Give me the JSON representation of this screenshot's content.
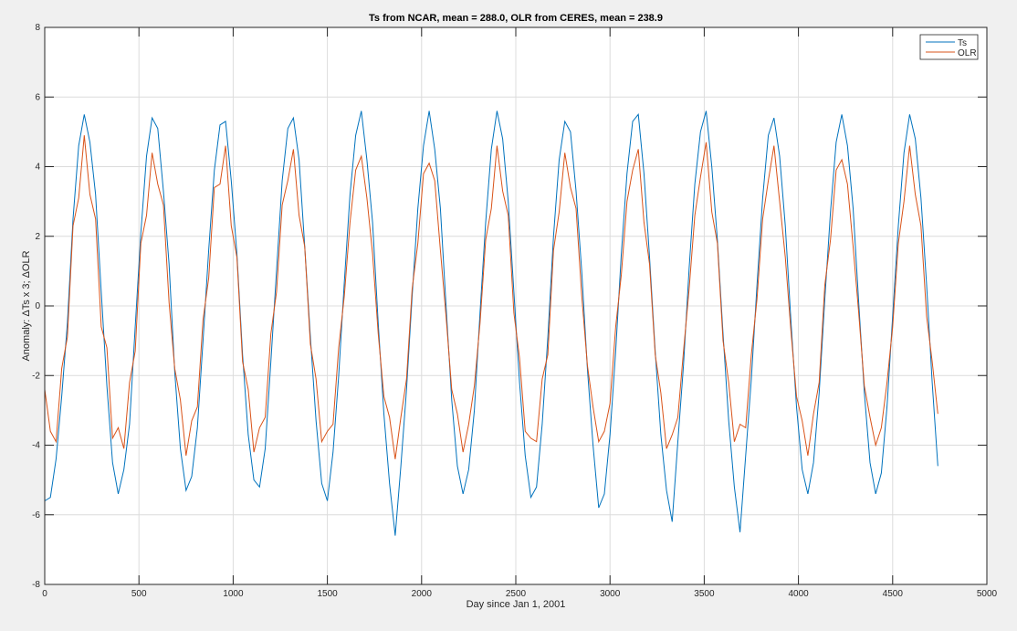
{
  "chart_data": {
    "type": "line",
    "title": "Ts from NCAR, mean = 288.0, OLR from CERES, mean = 238.9",
    "xlabel": "Day since Jan 1, 2001",
    "ylabel": "Anomaly: ΔTs x 3; ΔOLR",
    "xlim": [
      0,
      5000
    ],
    "ylim": [
      -8,
      8
    ],
    "xticks": [
      "0",
      "500",
      "1000",
      "1500",
      "2000",
      "2500",
      "3000",
      "3500",
      "4000",
      "4500",
      "5000"
    ],
    "yticks": [
      "-8",
      "-6",
      "-4",
      "-2",
      "0",
      "2",
      "4",
      "6",
      "8"
    ],
    "grid": true,
    "legend": "top-right",
    "x": [
      0,
      30,
      60,
      90,
      120,
      150,
      180,
      210,
      240,
      270,
      300,
      330,
      360,
      390,
      420,
      450,
      480,
      510,
      540,
      570,
      600,
      630,
      660,
      690,
      720,
      750,
      780,
      810,
      840,
      870,
      900,
      930,
      960,
      990,
      1020,
      1050,
      1080,
      1110,
      1140,
      1170,
      1200,
      1230,
      1260,
      1290,
      1320,
      1350,
      1380,
      1410,
      1440,
      1470,
      1500,
      1530,
      1560,
      1590,
      1620,
      1650,
      1680,
      1710,
      1740,
      1770,
      1800,
      1830,
      1860,
      1890,
      1920,
      1950,
      1980,
      2010,
      2040,
      2070,
      2100,
      2130,
      2160,
      2190,
      2220,
      2250,
      2280,
      2310,
      2340,
      2370,
      2400,
      2430,
      2460,
      2490,
      2520,
      2550,
      2580,
      2610,
      2640,
      2670,
      2700,
      2730,
      2760,
      2790,
      2820,
      2850,
      2880,
      2910,
      2940,
      2970,
      3000,
      3030,
      3060,
      3090,
      3120,
      3150,
      3180,
      3210,
      3240,
      3270,
      3300,
      3330,
      3360,
      3390,
      3420,
      3450,
      3480,
      3510,
      3540,
      3570,
      3600,
      3630,
      3660,
      3690,
      3720,
      3750,
      3780,
      3810,
      3840,
      3870,
      3900,
      3930,
      3960,
      3990,
      4020,
      4050,
      4080,
      4110,
      4140,
      4170,
      4200,
      4230,
      4260,
      4290,
      4320,
      4350,
      4380,
      4410,
      4440,
      4470,
      4500,
      4530,
      4560,
      4590,
      4620,
      4650,
      4680,
      4710,
      4740
    ],
    "series": [
      {
        "name": "Ts",
        "color": "#0072BD",
        "values": [
          -5.6,
          -5.5,
          -4.4,
          -2.6,
          -0.5,
          2.5,
          4.6,
          5.5,
          4.7,
          3.2,
          0.4,
          -2.3,
          -4.5,
          -5.4,
          -4.7,
          -3.4,
          -0.6,
          2.1,
          4.3,
          5.4,
          5.1,
          3.3,
          1.2,
          -1.9,
          -4.1,
          -5.3,
          -4.9,
          -3.5,
          -1.0,
          1.6,
          3.9,
          5.2,
          5.3,
          3.6,
          1.5,
          -1.4,
          -3.7,
          -5.0,
          -5.2,
          -4.1,
          -1.6,
          1.0,
          3.6,
          5.1,
          5.4,
          4.2,
          1.7,
          -0.9,
          -3.3,
          -5.1,
          -5.6,
          -4.2,
          -2.0,
          0.7,
          3.2,
          4.9,
          5.6,
          4.2,
          2.4,
          -0.5,
          -3.1,
          -5.1,
          -6.6,
          -4.6,
          -2.4,
          0.3,
          2.8,
          4.6,
          5.6,
          4.5,
          2.8,
          0.0,
          -2.7,
          -4.6,
          -5.4,
          -4.7,
          -3.0,
          -0.2,
          2.4,
          4.5,
          5.6,
          4.8,
          3.0,
          0.4,
          -2.2,
          -4.3,
          -5.5,
          -5.2,
          -3.4,
          -0.9,
          2.0,
          4.2,
          5.3,
          5.0,
          3.3,
          1.0,
          -1.8,
          -4.0,
          -5.8,
          -5.4,
          -3.7,
          -1.3,
          1.5,
          3.8,
          5.3,
          5.5,
          3.8,
          1.4,
          -1.3,
          -3.7,
          -5.3,
          -6.2,
          -3.9,
          -1.7,
          1.1,
          3.5,
          5.0,
          5.6,
          4.0,
          1.9,
          -0.8,
          -3.3,
          -5.2,
          -6.5,
          -4.3,
          -2.1,
          0.6,
          3.1,
          4.9,
          5.4,
          4.3,
          2.3,
          -0.4,
          -2.9,
          -4.7,
          -5.4,
          -4.5,
          -2.5,
          0.2,
          2.7,
          4.7,
          5.5,
          4.6,
          2.8,
          0.1,
          -2.5,
          -4.5,
          -5.4,
          -4.8,
          -2.9,
          -0.3,
          2.3,
          4.4,
          5.5,
          4.8,
          3.1,
          0.6,
          -2.2,
          -4.6
        ]
      },
      {
        "name": "OLR",
        "color": "#D95319",
        "values": [
          -2.4,
          -3.6,
          -3.9,
          -1.8,
          -0.9,
          2.3,
          3.1,
          4.9,
          3.2,
          2.5,
          -0.6,
          -1.2,
          -3.8,
          -3.5,
          -4.1,
          -2.2,
          -1.3,
          1.8,
          2.6,
          4.4,
          3.5,
          2.9,
          0.1,
          -1.8,
          -2.7,
          -4.3,
          -3.3,
          -2.9,
          -0.4,
          0.8,
          3.4,
          3.5,
          4.6,
          2.3,
          1.4,
          -1.6,
          -2.4,
          -4.2,
          -3.5,
          -3.2,
          -0.8,
          0.4,
          2.9,
          3.6,
          4.5,
          2.6,
          1.7,
          -1.1,
          -2.1,
          -3.9,
          -3.6,
          -3.4,
          -1.2,
          0.3,
          2.4,
          3.9,
          4.3,
          3.1,
          1.5,
          -0.8,
          -2.6,
          -3.2,
          -4.4,
          -3.2,
          -2.1,
          0.5,
          1.8,
          3.8,
          4.1,
          3.6,
          1.6,
          -0.3,
          -2.4,
          -3.1,
          -4.2,
          -3.4,
          -2.3,
          -0.5,
          1.9,
          2.8,
          4.6,
          3.3,
          2.6,
          -0.2,
          -1.5,
          -3.6,
          -3.8,
          -3.9,
          -2.1,
          -1.4,
          1.6,
          2.7,
          4.4,
          3.4,
          2.8,
          0.3,
          -1.7,
          -2.9,
          -3.9,
          -3.6,
          -2.8,
          -0.6,
          0.9,
          3.0,
          3.9,
          4.5,
          2.4,
          1.2,
          -1.4,
          -2.5,
          -4.1,
          -3.7,
          -3.2,
          -1.3,
          0.5,
          2.6,
          3.7,
          4.7,
          2.7,
          1.8,
          -1.0,
          -2.2,
          -3.9,
          -3.4,
          -3.5,
          -1.4,
          0.2,
          2.5,
          3.6,
          4.6,
          3.0,
          1.4,
          -0.7,
          -2.6,
          -3.3,
          -4.3,
          -3.1,
          -2.2,
          0.6,
          1.9,
          3.9,
          4.2,
          3.5,
          1.7,
          -0.2,
          -2.3,
          -3.2,
          -4.0,
          -3.5,
          -2.2,
          -0.6,
          1.8,
          3.0,
          4.6,
          3.2,
          2.3,
          -0.3,
          -1.6,
          -3.1
        ]
      }
    ]
  }
}
